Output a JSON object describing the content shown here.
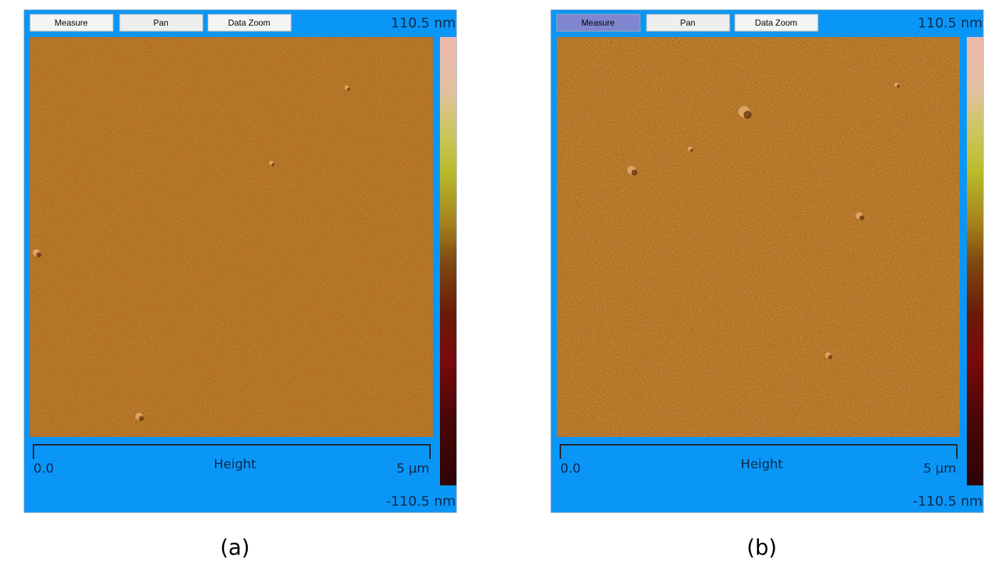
{
  "panels": [
    {
      "buttons": [
        "Measure",
        "Pan",
        "Data Zoom"
      ],
      "scale_max": "110.5 nm",
      "scale_min": "-110.5 nm",
      "axis_start": "0.0",
      "axis_label": "Height",
      "axis_end": "5 µm",
      "caption": "(a)"
    },
    {
      "buttons": [
        "Measure",
        "Pan",
        "Data Zoom"
      ],
      "scale_max": "110.5 nm",
      "scale_min": "-110.5 nm",
      "axis_start": "0.0",
      "axis_label": "Height",
      "axis_end": "5 µm",
      "caption": "(b)"
    }
  ]
}
